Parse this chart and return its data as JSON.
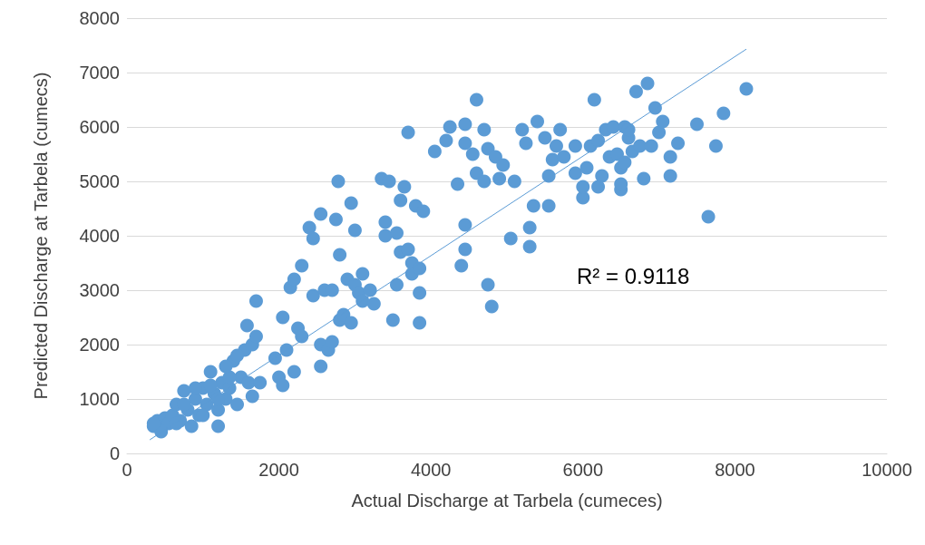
{
  "chart_data": {
    "type": "scatter",
    "xlabel": "Actual Discharge at Tarbela (cumeces)",
    "ylabel": "Predicted Discharge at Tarbela (cumecs)",
    "xlim": [
      0,
      10000
    ],
    "xticks": [
      0,
      2000,
      4000,
      6000,
      8000,
      10000
    ],
    "ylim": [
      0,
      8000
    ],
    "yticks": [
      0,
      1000,
      2000,
      3000,
      4000,
      5000,
      6000,
      7000,
      8000
    ],
    "grid": "y",
    "marker": "circle",
    "annotations": [
      "R² = 0.9118"
    ],
    "series": [
      {
        "color": "#5b9bd5",
        "x": [
          350,
          400,
          500,
          550,
          600,
          650,
          700,
          750,
          800,
          850,
          900,
          950,
          1000,
          1050,
          1100,
          1150,
          1200,
          1200,
          1250,
          1300,
          1350,
          1400,
          1450,
          1500,
          1550,
          1600,
          1650,
          1650,
          1700,
          1700,
          1750,
          1580,
          1450,
          1350,
          1100,
          900,
          750,
          650,
          450,
          350,
          1000,
          1200,
          1300,
          1950,
          2000,
          2050,
          2050,
          2100,
          2150,
          2200,
          2200,
          2250,
          2300,
          2300,
          2400,
          2450,
          2450,
          2550,
          2550,
          2550,
          2600,
          2650,
          2700,
          2700,
          2750,
          2780,
          2800,
          2800,
          2850,
          2900,
          2950,
          2950,
          3000,
          3000,
          3050,
          3100,
          3100,
          3200,
          3250,
          3350,
          3400,
          3400,
          3450,
          3500,
          3550,
          3550,
          3600,
          3600,
          3650,
          3700,
          3700,
          3750,
          3750,
          3800,
          3850,
          3850,
          3850,
          3900,
          4050,
          4200,
          4250,
          4350,
          4400,
          4450,
          4450,
          4450,
          4450,
          4550,
          4600,
          4600,
          4700,
          4700,
          4750,
          4750,
          4800,
          4850,
          4900,
          4950,
          5050,
          5100,
          5200,
          5250,
          5300,
          5300,
          5350,
          5400,
          5500,
          5550,
          5550,
          5600,
          5650,
          5700,
          5750,
          5900,
          5900,
          6000,
          6000,
          6050,
          6100,
          6150,
          6200,
          6200,
          6250,
          6300,
          6350,
          6400,
          6450,
          6500,
          6500,
          6500,
          6550,
          6600,
          6650,
          6700,
          6750,
          6800,
          6850,
          6900,
          6950,
          7000,
          7050,
          7150,
          7150,
          7250,
          7500,
          7650,
          7750,
          7850,
          8150,
          6550,
          6600
        ],
        "values": [
          500,
          600,
          650,
          550,
          700,
          900,
          600,
          1150,
          800,
          500,
          1000,
          700,
          1200,
          900,
          1500,
          1100,
          800,
          500,
          1300,
          1000,
          1200,
          1700,
          900,
          1400,
          1900,
          1300,
          2000,
          1050,
          2800,
          2150,
          1300,
          2350,
          1800,
          1400,
          1250,
          1200,
          900,
          550,
          400,
          550,
          700,
          1000,
          1600,
          1750,
          1400,
          1250,
          2500,
          1900,
          3050,
          3200,
          1500,
          2300,
          3450,
          2150,
          4150,
          3950,
          2900,
          4400,
          2000,
          1600,
          3000,
          1900,
          2050,
          3000,
          4300,
          5000,
          3650,
          2450,
          2550,
          3200,
          2400,
          4600,
          4100,
          3100,
          2950,
          3300,
          2800,
          3000,
          2750,
          5050,
          4000,
          4250,
          5000,
          2450,
          4050,
          3100,
          4650,
          3700,
          4900,
          5900,
          3750,
          3500,
          3300,
          4550,
          3400,
          2950,
          2400,
          4450,
          5550,
          5750,
          6000,
          4950,
          3450,
          5700,
          6050,
          4200,
          3750,
          5500,
          6500,
          5150,
          5000,
          5950,
          5600,
          3100,
          2700,
          5450,
          5050,
          5300,
          3950,
          5000,
          5950,
          5700,
          4150,
          3800,
          4550,
          6100,
          5800,
          5100,
          4550,
          5400,
          5650,
          5950,
          5450,
          5150,
          5650,
          4700,
          4900,
          5250,
          5650,
          6500,
          5750,
          4900,
          5100,
          5950,
          5450,
          6000,
          5500,
          4850,
          5250,
          4950,
          6000,
          5800,
          5550,
          6650,
          5650,
          5050,
          6800,
          5650,
          6350,
          5900,
          6100,
          5100,
          5450,
          5700,
          6050,
          4350,
          5650,
          6250,
          6700,
          5350,
          5950
        ]
      },
      {
        "type": "line",
        "color": "#5b9bd5",
        "marker": "none",
        "x": [
          300,
          8150
        ],
        "values": [
          250,
          7430
        ]
      }
    ]
  }
}
